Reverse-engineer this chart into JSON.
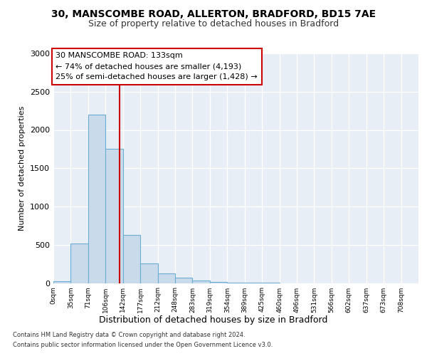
{
  "title1": "30, MANSCOMBE ROAD, ALLERTON, BRADFORD, BD15 7AE",
  "title2": "Size of property relative to detached houses in Bradford",
  "xlabel": "Distribution of detached houses by size in Bradford",
  "ylabel": "Number of detached properties",
  "bin_labels": [
    "0sqm",
    "35sqm",
    "71sqm",
    "106sqm",
    "142sqm",
    "177sqm",
    "212sqm",
    "248sqm",
    "283sqm",
    "319sqm",
    "354sqm",
    "389sqm",
    "425sqm",
    "460sqm",
    "496sqm",
    "531sqm",
    "566sqm",
    "602sqm",
    "637sqm",
    "673sqm",
    "708sqm"
  ],
  "bar_heights": [
    25,
    520,
    2200,
    1750,
    630,
    260,
    130,
    70,
    30,
    15,
    8,
    5,
    3,
    0,
    0,
    0,
    0,
    0,
    0,
    0,
    0
  ],
  "bar_color": "#c9daea",
  "bar_edgecolor": "#6aadd5",
  "ylim": [
    0,
    3000
  ],
  "yticks": [
    0,
    500,
    1000,
    1500,
    2000,
    2500,
    3000
  ],
  "property_line_x": 133,
  "bin_width": 35,
  "annotation_line1": "30 MANSCOMBE ROAD: 133sqm",
  "annotation_line2": "← 74% of detached houses are smaller (4,193)",
  "annotation_line3": "25% of semi-detached houses are larger (1,428) →",
  "annotation_box_edgecolor": "#cc0000",
  "footer1": "Contains HM Land Registry data © Crown copyright and database right 2024.",
  "footer2": "Contains public sector information licensed under the Open Government Licence v3.0.",
  "bg_color": "#e8eef5"
}
